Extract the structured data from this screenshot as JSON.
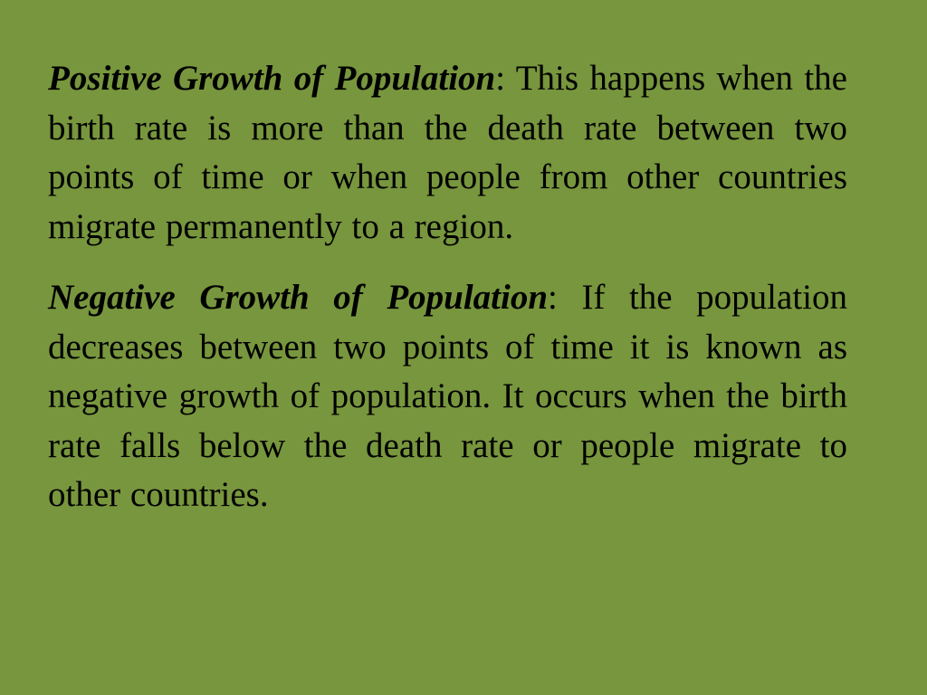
{
  "slide": {
    "paragraphs": [
      {
        "term": "Positive Growth of Population",
        "separator": ":",
        "text": " This happens when the birth rate is more than the death rate between two points of time or when people from other countries migrate permanently to a region."
      },
      {
        "term": "Negative Growth of Population",
        "separator": ":",
        "text": " If the population decreases between two points of time it is known as negative growth of population. It occurs when the birth rate falls below the death rate or people migrate to other countries."
      }
    ]
  }
}
